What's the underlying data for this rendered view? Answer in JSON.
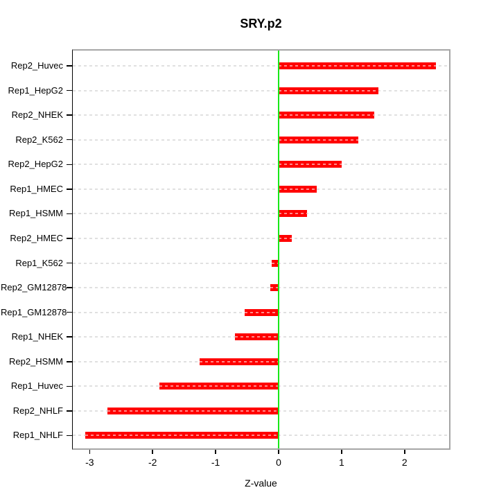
{
  "title": "SRY.p2",
  "chart_data": {
    "type": "bar",
    "orientation": "horizontal",
    "title": "SRY.p2",
    "xlabel": "Z-value",
    "ylabel": "",
    "categories": [
      "Rep2_Huvec",
      "Rep1_HepG2",
      "Rep2_NHEK",
      "Rep2_K562",
      "Rep2_HepG2",
      "Rep1_HMEC",
      "Rep1_HSMM",
      "Rep2_HMEC",
      "Rep1_K562",
      "Rep2_GM12878",
      "Rep1_GM12878",
      "Rep1_NHEK",
      "Rep2_HSMM",
      "Rep1_Huvec",
      "Rep2_NHLF",
      "Rep1_NHLF"
    ],
    "values": [
      2.5,
      1.58,
      1.52,
      1.26,
      1.0,
      0.61,
      0.45,
      0.21,
      -0.11,
      -0.13,
      -0.54,
      -0.69,
      -1.25,
      -1.89,
      -2.72,
      -3.07
    ],
    "x_ticks": [
      -3,
      -2,
      -1,
      0,
      1,
      2
    ],
    "xlim": [
      -3.27,
      2.7
    ],
    "grid": "dotted-horizontal-per-category",
    "legend": "none",
    "colors": {
      "bar": "#ff0000",
      "zero_line": "#17e817",
      "gridline": "#e0e0e0",
      "plot_border": "#a6a6a6",
      "axis": "#000000",
      "background": "#ffffff"
    }
  }
}
